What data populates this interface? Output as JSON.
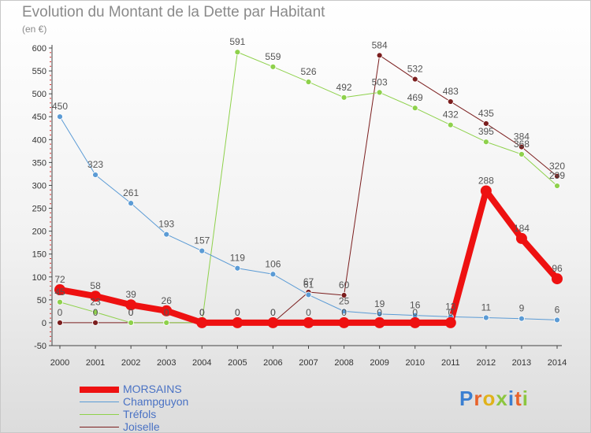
{
  "title": "Evolution du Montant de la Dette par Habitant",
  "unit_label": "(en €)",
  "logo": {
    "text": "Proxiti",
    "colors": [
      "#3b7fd1",
      "#e8632b",
      "#e0b21a",
      "#8cc63f",
      "#3b7fd1",
      "#e8632b",
      "#8cc63f"
    ]
  },
  "chart_data": {
    "type": "line",
    "title": "Evolution du Montant de la Dette par Habitant",
    "ylabel": "(en €)",
    "xlabel": "",
    "x": [
      "2000",
      "2001",
      "2002",
      "2003",
      "2004",
      "2005",
      "2006",
      "2007",
      "2008",
      "2009",
      "2010",
      "2011",
      "2012",
      "2013",
      "2014"
    ],
    "ylim": [
      -50,
      600
    ],
    "yticks": [
      -50,
      0,
      50,
      100,
      150,
      200,
      250,
      300,
      350,
      400,
      450,
      500,
      550,
      600
    ],
    "grid": false,
    "legend": "bottom-left",
    "series": [
      {
        "name": "MORSAINS",
        "color": "#ee1111",
        "width": 8,
        "values": [
          72,
          58,
          39,
          26,
          0,
          0,
          0,
          0,
          0,
          0,
          0,
          0,
          288,
          184,
          96
        ],
        "labels": [
          "72",
          "58",
          "39",
          "26",
          "0",
          "0",
          "0",
          "0",
          "0",
          "0",
          "0",
          "0",
          "288",
          "184",
          "96"
        ]
      },
      {
        "name": "Champguyon",
        "color": "#5b9bd5",
        "width": 1,
        "values": [
          450,
          323,
          261,
          193,
          157,
          119,
          106,
          61,
          25,
          19,
          16,
          13,
          11,
          9,
          6
        ],
        "labels": [
          "450",
          "323",
          "261",
          "193",
          "157",
          "119",
          "106",
          "61",
          "25",
          "19",
          "16",
          "13",
          "11",
          "9",
          "6"
        ]
      },
      {
        "name": "Tréfols",
        "color": "#8ed14b",
        "width": 1,
        "values": [
          45,
          23,
          0,
          0,
          0,
          591,
          559,
          526,
          492,
          503,
          469,
          432,
          395,
          368,
          299
        ],
        "labels": [
          "45",
          "23",
          "0",
          "0",
          "0",
          "591",
          "559",
          "526",
          "492",
          "503",
          "469",
          "432",
          "395",
          "368",
          "299"
        ]
      },
      {
        "name": "Joiselle",
        "color": "#7b1e1e",
        "width": 1,
        "values": [
          0,
          0,
          0,
          0,
          0,
          0,
          0,
          67,
          60,
          584,
          532,
          483,
          435,
          384,
          320
        ],
        "labels": [
          "0",
          "0",
          "0",
          "0",
          "0",
          "0",
          "0",
          "67",
          "60",
          "584",
          "532",
          "483",
          "435",
          "384",
          "320"
        ]
      }
    ]
  }
}
